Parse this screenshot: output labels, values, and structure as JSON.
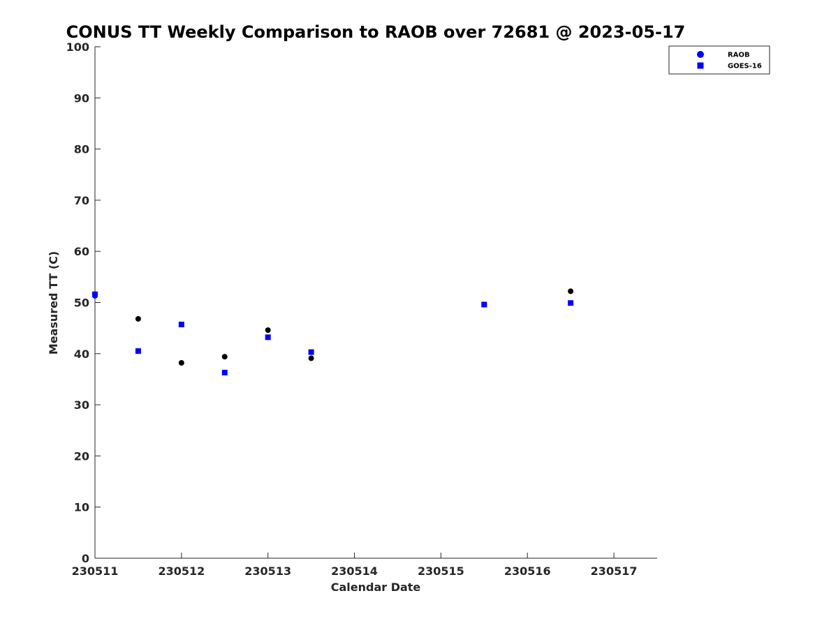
{
  "chart_data": {
    "type": "scatter",
    "title": "CONUS TT Weekly Comparison to RAOB over 72681 @ 2023-05-17",
    "xlabel": "Calendar Date",
    "ylabel": "Measured TT (C)",
    "xlim": [
      0,
      6.5
    ],
    "ylim": [
      0,
      100
    ],
    "x_ticks": [
      {
        "value": 0,
        "label": "230511"
      },
      {
        "value": 1,
        "label": "230512"
      },
      {
        "value": 2,
        "label": "230513"
      },
      {
        "value": 3,
        "label": "230514"
      },
      {
        "value": 4,
        "label": "230515"
      },
      {
        "value": 5,
        "label": "230516"
      },
      {
        "value": 6,
        "label": "230517"
      }
    ],
    "y_ticks": [
      0,
      10,
      20,
      30,
      40,
      50,
      60,
      70,
      80,
      90,
      100
    ],
    "legend_position": "top-right",
    "series": [
      {
        "name": "RAOB",
        "marker": "circle",
        "legend_color": "#0000ff",
        "points": [
          {
            "x": 0.0,
            "y": 51.3,
            "color": "#0000ff"
          },
          {
            "x": 0.5,
            "y": 46.8,
            "color": "#000000"
          },
          {
            "x": 1.0,
            "y": 38.2,
            "color": "#000000"
          },
          {
            "x": 1.5,
            "y": 39.4,
            "color": "#000000"
          },
          {
            "x": 2.0,
            "y": 44.6,
            "color": "#000000"
          },
          {
            "x": 2.5,
            "y": 39.1,
            "color": "#000000"
          },
          {
            "x": 4.5,
            "y": 49.6,
            "color": "#0000ff"
          },
          {
            "x": 5.5,
            "y": 52.2,
            "color": "#000000"
          }
        ]
      },
      {
        "name": "GOES-16",
        "marker": "square",
        "legend_color": "#0000ff",
        "points": [
          {
            "x": 0.0,
            "y": 51.6,
            "color": "#0000ff"
          },
          {
            "x": 0.5,
            "y": 40.5,
            "color": "#0000ff"
          },
          {
            "x": 1.0,
            "y": 45.7,
            "color": "#0000ff"
          },
          {
            "x": 1.5,
            "y": 36.3,
            "color": "#0000ff"
          },
          {
            "x": 2.0,
            "y": 43.2,
            "color": "#0000ff"
          },
          {
            "x": 2.5,
            "y": 40.3,
            "color": "#0000ff"
          },
          {
            "x": 4.5,
            "y": 49.6,
            "color": "#0000ff"
          },
          {
            "x": 5.5,
            "y": 49.9,
            "color": "#0000ff"
          }
        ]
      }
    ]
  }
}
